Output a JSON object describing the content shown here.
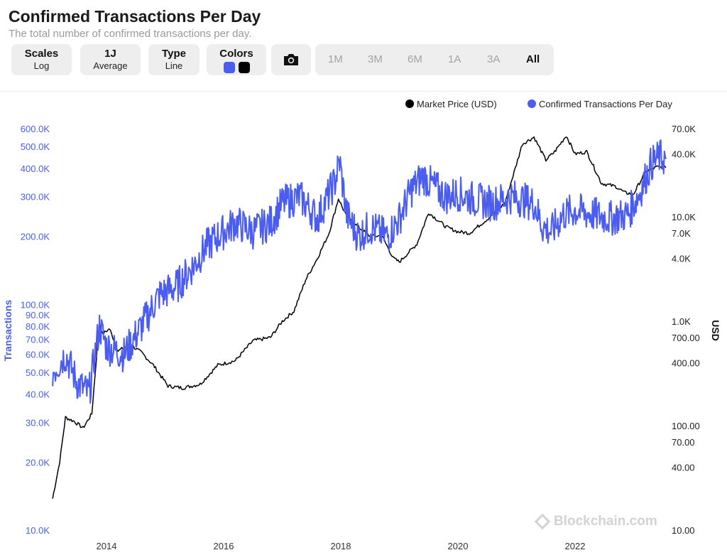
{
  "header": {
    "title": "Confirmed Transactions Per Day",
    "subtitle": "The total number of confirmed transactions per day."
  },
  "toolbar": {
    "scales": {
      "label": "Scales",
      "value": "Log"
    },
    "period": {
      "label": "1J",
      "value": "Average"
    },
    "type": {
      "label": "Type",
      "value": "Line"
    },
    "colors": {
      "label": "Colors",
      "swatches": [
        "#4a5df0",
        "#000000"
      ]
    },
    "camera_icon": "camera-icon",
    "ranges": [
      "1M",
      "3M",
      "6M",
      "1A",
      "3A",
      "All"
    ],
    "active_range": "All"
  },
  "watermark": "Blockchain.com",
  "chart_data": {
    "type": "line",
    "x_axis": {
      "ticks": [
        "2014",
        "2016",
        "2018",
        "2020",
        "2022"
      ]
    },
    "left_axis": {
      "label": "Transactions",
      "scale": "log",
      "ticks": [
        "10.0K",
        "20.0K",
        "30.0K",
        "40.0K",
        "50.0K",
        "60.0K",
        "70.0K",
        "80.0K",
        "90.0K",
        "100.0K",
        "200.0K",
        "300.0K",
        "400.0K",
        "500.0K",
        "600.0K"
      ],
      "range": [
        10000,
        650000
      ]
    },
    "right_axis": {
      "label": "USD",
      "scale": "log",
      "ticks": [
        "10.00",
        "40.00",
        "70.00",
        "100.00",
        "400.00",
        "700.00",
        "1.0K",
        "4.0K",
        "7.0K",
        "10.0K",
        "40.0K",
        "70.0K"
      ],
      "range": [
        10,
        75000
      ]
    },
    "legend": {
      "position": "top-right"
    },
    "series": [
      {
        "name": "Market Price (USD)",
        "axis": "right",
        "color": "#000000",
        "x": [
          2013.08,
          2013.2,
          2013.3,
          2013.45,
          2013.6,
          2013.75,
          2013.88,
          2013.93,
          2014.05,
          2014.2,
          2014.4,
          2014.6,
          2014.8,
          2015.05,
          2015.3,
          2015.6,
          2015.9,
          2016.2,
          2016.5,
          2016.8,
          2017.0,
          2017.2,
          2017.4,
          2017.6,
          2017.8,
          2017.96,
          2018.1,
          2018.3,
          2018.5,
          2018.7,
          2018.9,
          2019.0,
          2019.3,
          2019.5,
          2019.8,
          2020.0,
          2020.2,
          2020.5,
          2020.8,
          2021.0,
          2021.1,
          2021.3,
          2021.5,
          2021.65,
          2021.85,
          2022.0,
          2022.2,
          2022.45,
          2022.7,
          2022.85,
          2023.0,
          2023.2,
          2023.4,
          2023.55
        ],
        "values": [
          20,
          45,
          120,
          110,
          95,
          130,
          1000,
          750,
          850,
          520,
          600,
          500,
          380,
          240,
          230,
          250,
          380,
          420,
          650,
          700,
          1000,
          1250,
          2500,
          4000,
          7000,
          15000,
          10000,
          8000,
          6500,
          6600,
          4000,
          3700,
          5500,
          11000,
          8000,
          7200,
          7000,
          9500,
          13500,
          32000,
          50000,
          58000,
          35000,
          42000,
          60000,
          40000,
          42000,
          21000,
          19500,
          17000,
          16600,
          27000,
          30000,
          29500
        ]
      },
      {
        "name": "Confirmed Transactions Per Day",
        "axis": "left",
        "color": "#4a5df0",
        "x": [
          2013.08,
          2013.3,
          2013.5,
          2013.7,
          2013.88,
          2014.0,
          2014.3,
          2014.6,
          2014.9,
          2015.2,
          2015.5,
          2015.7,
          2015.9,
          2016.2,
          2016.5,
          2016.8,
          2017.0,
          2017.3,
          2017.6,
          2017.9,
          2017.98,
          2018.1,
          2018.3,
          2018.5,
          2018.8,
          2019.0,
          2019.2,
          2019.4,
          2019.6,
          2019.8,
          2020.0,
          2020.3,
          2020.6,
          2020.9,
          2021.1,
          2021.3,
          2021.45,
          2021.6,
          2021.8,
          2022.0,
          2022.3,
          2022.6,
          2022.9,
          2023.1,
          2023.3,
          2023.45,
          2023.55
        ],
        "values": [
          50000,
          60000,
          45000,
          40000,
          80000,
          65000,
          60000,
          80000,
          110000,
          120000,
          150000,
          180000,
          200000,
          230000,
          210000,
          230000,
          280000,
          300000,
          240000,
          350000,
          430000,
          250000,
          200000,
          220000,
          200000,
          240000,
          320000,
          370000,
          330000,
          300000,
          310000,
          290000,
          280000,
          300000,
          290000,
          280000,
          220000,
          210000,
          250000,
          260000,
          250000,
          240000,
          250000,
          310000,
          420000,
          450000,
          440000
        ]
      }
    ]
  }
}
